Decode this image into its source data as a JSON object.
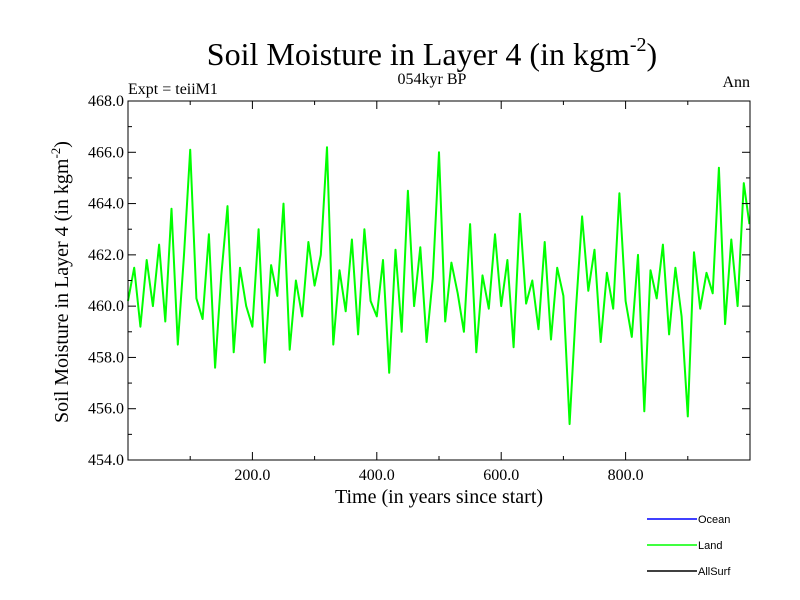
{
  "chart_data": {
    "type": "line",
    "title": "Soil Moisture in Layer 4 (in kgm",
    "title_superscript": "-2",
    "title_close": ")",
    "subtitle": "054kyr BP",
    "left_label": "Expt = teiiM1",
    "right_label": "Ann",
    "xlabel": "Time (in years since start)",
    "ylabel": "Soil Moisture in Layer 4 (in kgm",
    "ylabel_superscript": "-2",
    "ylabel_close": ")",
    "xlim": [
      0,
      1000
    ],
    "ylim": [
      454.0,
      468.0
    ],
    "x_ticks": [
      200,
      400,
      600,
      800
    ],
    "x_tick_labels": [
      "200.0",
      "400.0",
      "600.0",
      "800.0"
    ],
    "y_ticks": [
      454,
      456,
      458,
      460,
      462,
      464,
      466,
      468
    ],
    "y_tick_labels": [
      "454.0",
      "456.0",
      "458.0",
      "460.0",
      "462.0",
      "464.0",
      "466.0",
      "468.0"
    ],
    "grid": false,
    "legend_position": "bottom-right",
    "series": [
      {
        "name": "Ocean",
        "color": "#0000ff",
        "x": [],
        "values": []
      },
      {
        "name": "Land",
        "color": "#00ff00",
        "x": [
          0,
          10,
          20,
          30,
          40,
          50,
          60,
          70,
          80,
          90,
          100,
          110,
          120,
          130,
          140,
          150,
          160,
          170,
          180,
          190,
          200,
          210,
          220,
          230,
          240,
          250,
          260,
          270,
          280,
          290,
          300,
          310,
          320,
          330,
          340,
          350,
          360,
          370,
          380,
          390,
          400,
          410,
          420,
          430,
          440,
          450,
          460,
          470,
          480,
          490,
          500,
          510,
          520,
          530,
          540,
          550,
          560,
          570,
          580,
          590,
          600,
          610,
          620,
          630,
          640,
          650,
          660,
          670,
          680,
          690,
          700,
          710,
          720,
          730,
          740,
          750,
          760,
          770,
          780,
          790,
          800,
          810,
          820,
          830,
          840,
          850,
          860,
          870,
          880,
          890,
          900,
          910,
          920,
          930,
          940,
          950,
          960,
          970,
          980,
          990,
          999
        ],
        "values": [
          460.2,
          461.5,
          459.2,
          461.8,
          460.0,
          462.4,
          459.4,
          463.8,
          458.5,
          462.0,
          466.1,
          460.3,
          459.5,
          462.8,
          457.6,
          461.2,
          463.9,
          458.2,
          461.5,
          460.0,
          459.2,
          463.0,
          457.8,
          461.6,
          460.4,
          464.0,
          458.3,
          461.0,
          459.6,
          462.5,
          460.8,
          462.0,
          466.2,
          458.5,
          461.4,
          459.8,
          462.6,
          458.9,
          463.0,
          460.2,
          459.6,
          461.8,
          457.4,
          462.2,
          459.0,
          464.5,
          460.0,
          462.3,
          458.6,
          461.1,
          466.0,
          459.4,
          461.7,
          460.5,
          459.0,
          463.2,
          458.2,
          461.2,
          459.9,
          462.8,
          460.0,
          461.8,
          458.4,
          463.6,
          460.1,
          461.0,
          459.1,
          462.5,
          458.7,
          461.5,
          460.4,
          455.4,
          459.8,
          463.5,
          460.6,
          462.2,
          458.6,
          461.3,
          459.9,
          464.4,
          460.2,
          458.8,
          462.0,
          455.9,
          461.4,
          460.3,
          462.4,
          458.9,
          461.5,
          459.6,
          455.7,
          462.1,
          459.9,
          461.3,
          460.5,
          465.4,
          459.3,
          462.6,
          460.0,
          464.8,
          463.2
        ]
      },
      {
        "name": "AllSurf",
        "color": "#000000",
        "x": [],
        "values": []
      }
    ]
  }
}
